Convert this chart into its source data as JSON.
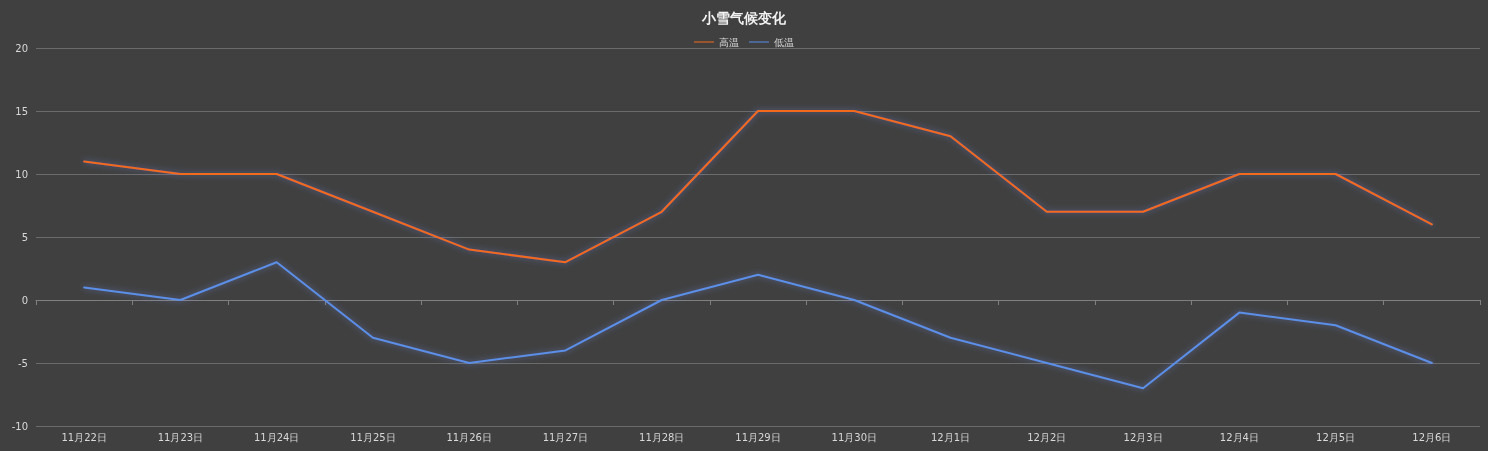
{
  "chart_data": {
    "type": "line",
    "title": "小雪气候变化",
    "categories": [
      "11月22日",
      "11月23日",
      "11月24日",
      "11月25日",
      "11月26日",
      "11月27日",
      "11月28日",
      "11月29日",
      "11月30日",
      "12月1日",
      "12月2日",
      "12月3日",
      "12月4日",
      "12月5日",
      "12月6日"
    ],
    "series": [
      {
        "name": "高温",
        "color": "#f26a1b",
        "values": [
          11,
          10,
          10,
          7,
          4,
          3,
          7,
          15,
          15,
          13,
          7,
          7,
          10,
          10,
          6
        ]
      },
      {
        "name": "低温",
        "color": "#5b8fe8",
        "values": [
          1,
          0,
          3,
          -3,
          -5,
          -4,
          0,
          2,
          0,
          -3,
          -5,
          -7,
          -1,
          -2,
          -5
        ]
      }
    ],
    "ylim": [
      -10,
      20
    ],
    "yticks": [
      -10,
      -5,
      0,
      5,
      10,
      15,
      20
    ],
    "grid": "y",
    "legend": "top",
    "marker": "none",
    "line_style": "solid"
  }
}
